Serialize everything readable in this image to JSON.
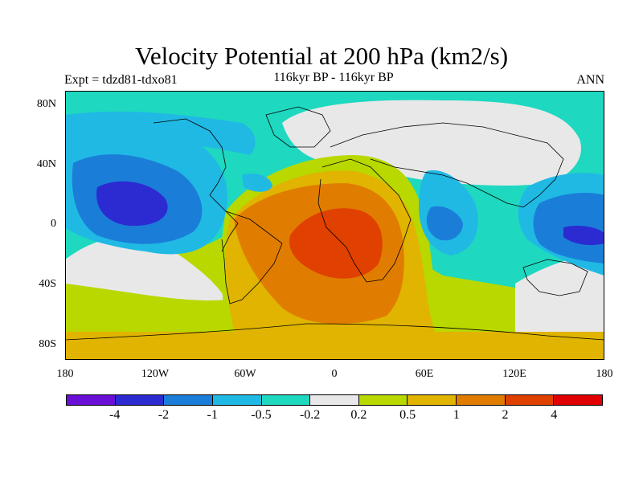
{
  "title": "Velocity Potential at 200 hPa (km2/s)",
  "expt_label": "Expt = tdzd81-tdxo81",
  "period_label": "116kyr BP - 116kyr BP",
  "season_label": "ANN",
  "axes": {
    "y_ticks": [
      "80N",
      "40N",
      "0",
      "40S",
      "80S"
    ],
    "x_ticks": [
      "180",
      "120W",
      "60W",
      "0",
      "60E",
      "120E",
      "180"
    ]
  },
  "colorbar": {
    "colors": [
      "#6a0fd6",
      "#2b2bd1",
      "#1a7ed8",
      "#20b9e4",
      "#1ed8c0",
      "#e8e8e8",
      "#b8d800",
      "#e0b400",
      "#e07d00",
      "#e04000",
      "#e00000"
    ],
    "labels": [
      "-4",
      "-2",
      "-1",
      "-0.5",
      "-0.2",
      "0.2",
      "0.5",
      "1",
      "2",
      "4"
    ]
  },
  "chart_data": {
    "type": "heatmap",
    "title": "Velocity Potential at 200 hPa (km2/s)",
    "projection": "cylindrical equidistant, 180W to 180E, 90S to 90N",
    "contour_levels": [
      -4,
      -2,
      -1,
      -0.5,
      -0.2,
      0.2,
      0.5,
      1,
      2,
      4
    ],
    "features": [
      {
        "region": "North Pacific / central Pacific",
        "min_level": -2
      },
      {
        "region": "Western Pacific near Philippines / New Guinea",
        "min_level": -2
      },
      {
        "region": "Indian Ocean near 0N 80E",
        "min_level": -1
      },
      {
        "region": "South Atlantic / Africa near 10S 10W",
        "max_level": 2
      }
    ]
  }
}
